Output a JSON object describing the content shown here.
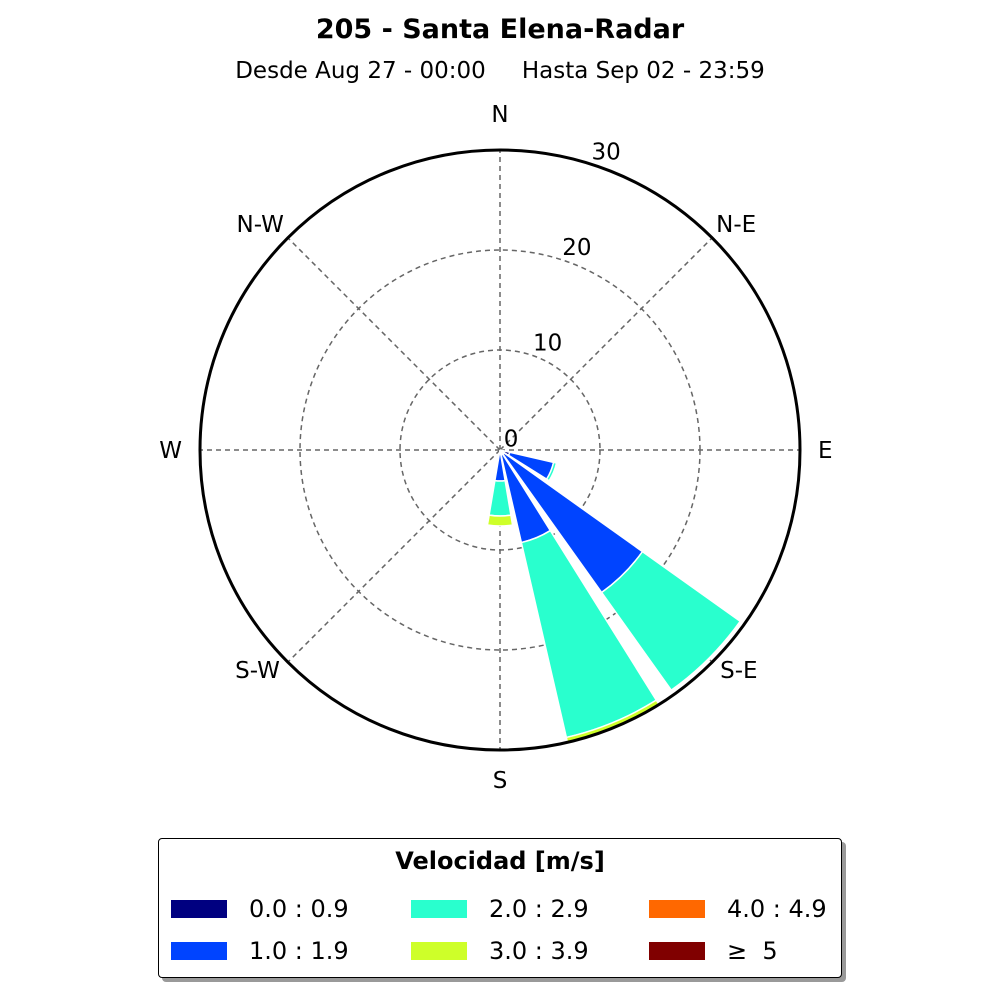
{
  "title": "205 - Santa Elena-Radar",
  "subtitle": {
    "from": "Desde Aug 27 - 00:00",
    "to": "Hasta Sep 02 - 23:59"
  },
  "compass": [
    "N",
    "N-E",
    "E",
    "S-E",
    "S",
    "S-W",
    "W",
    "N-W"
  ],
  "legend": {
    "title": "Velocidad [m/s]",
    "items": [
      {
        "label": "0.0 : 0.9",
        "color": "#000080"
      },
      {
        "label": "2.0 : 2.9",
        "color": "#29ffce"
      },
      {
        "label": "4.0 : 4.9",
        "color": "#ff6800"
      },
      {
        "label": "1.0 : 1.9",
        "color": "#0044ff"
      },
      {
        "label": "3.0 : 3.9",
        "color": "#ceff29"
      },
      {
        "label": "≥  5",
        "color": "#800000"
      }
    ]
  },
  "chart_data": {
    "type": "windrose",
    "radial_ticks": [
      0,
      10,
      20,
      30
    ],
    "rmax": 30,
    "bins": [
      "0.0 : 0.9",
      "1.0 : 1.9",
      "2.0 : 2.9",
      "3.0 : 3.9",
      "4.0 : 4.9",
      "≥  5"
    ],
    "colors": [
      "#000080",
      "#0044ff",
      "#29ffce",
      "#ceff29",
      "#ff6800",
      "#800000"
    ],
    "directions": [
      {
        "dir": "E",
        "angle": 112.5,
        "values": [
          1.0,
          4.5,
          0.3,
          0,
          0,
          0
        ]
      },
      {
        "dir": "S-E",
        "angle": 135.0,
        "values": [
          0.5,
          17.0,
          12.0,
          0,
          0,
          0
        ]
      },
      {
        "dir": "S-E",
        "angle": 157.5,
        "values": [
          0.5,
          9.0,
          20.0,
          0.6,
          0,
          0
        ]
      },
      {
        "dir": "S",
        "angle": 180.0,
        "values": [
          0.3,
          2.8,
          3.5,
          1.0,
          0,
          0
        ]
      }
    ]
  }
}
